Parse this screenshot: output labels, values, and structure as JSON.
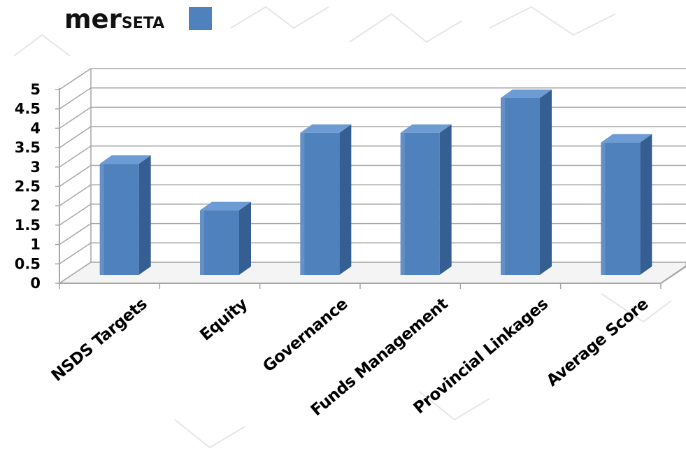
{
  "chart_data": {
    "type": "bar",
    "categories": [
      "NSDS Targets",
      "Equity",
      "Governance",
      "Funds Management",
      "Provincial Linkages",
      "Average Score"
    ],
    "series": [
      {
        "name": "merSETA",
        "name_prefix": "mer",
        "name_suffix": "SETA",
        "values": [
          3.3,
          2.1,
          4.1,
          4.1,
          5.0,
          3.85
        ]
      }
    ],
    "yticks": [
      "0",
      "0.5",
      "1",
      "1.5",
      "2",
      "2.5",
      "3",
      "3.5",
      "4",
      "4.5",
      "5"
    ],
    "ylim": [
      0,
      5
    ],
    "grid": true,
    "legend_position": "top-left",
    "colors": {
      "bar_front": "#4f81bd",
      "bar_side": "#355f92",
      "bar_top": "#6d9bd3",
      "gridline": "#a6a6a6",
      "legend_swatch": "#4f81bd"
    }
  }
}
